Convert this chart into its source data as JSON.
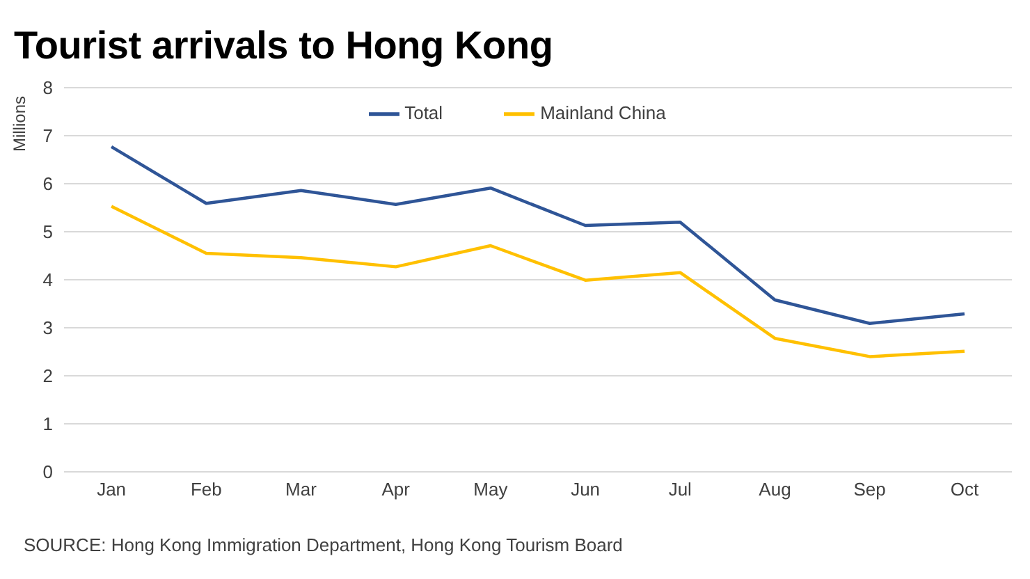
{
  "chart_data": {
    "type": "line",
    "title": "Tourist arrivals to Hong Kong",
    "ylabel": "Millions",
    "categories": [
      "Jan",
      "Feb",
      "Mar",
      "Apr",
      "May",
      "Jun",
      "Jul",
      "Aug",
      "Sep",
      "Oct"
    ],
    "series": [
      {
        "name": "Total",
        "color": "#2f5597",
        "values": [
          6.77,
          5.59,
          5.86,
          5.57,
          5.91,
          5.13,
          5.2,
          3.58,
          3.09,
          3.29
        ]
      },
      {
        "name": "Mainland China",
        "color": "#ffc000",
        "values": [
          5.53,
          4.55,
          4.46,
          4.27,
          4.71,
          3.99,
          4.15,
          2.78,
          2.4,
          2.51
        ]
      }
    ],
    "ylim": [
      0,
      8
    ],
    "yticks": [
      0,
      1,
      2,
      3,
      4,
      5,
      6,
      7,
      8
    ],
    "grid": "y",
    "legend": "top",
    "marker": "none",
    "line_style": "solid",
    "annotations": [
      "SOURCE: Hong Kong Immigration Department, Hong Kong Tourism Board"
    ]
  }
}
